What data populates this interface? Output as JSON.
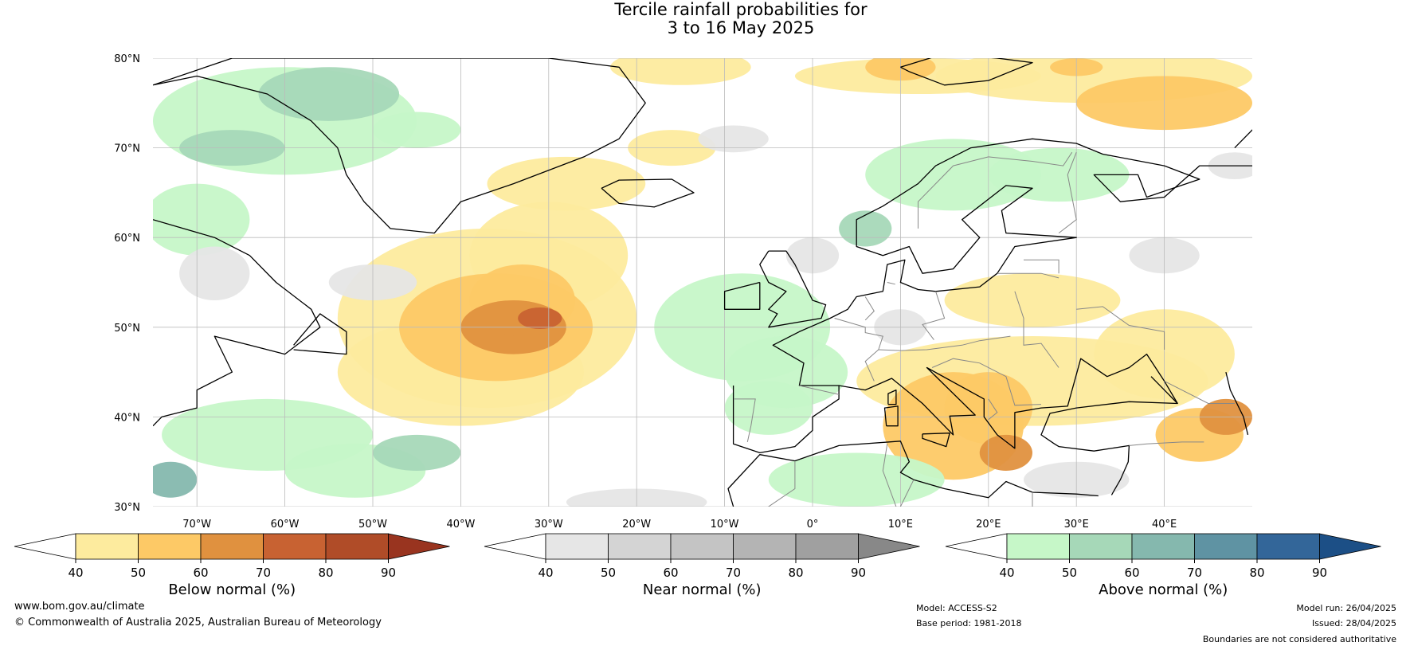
{
  "title": {
    "line1": "Tercile rainfall probabilities for",
    "line2": "3 to 16 May 2025"
  },
  "map": {
    "lat_labels": [
      "80°N",
      "70°N",
      "60°N",
      "50°N",
      "40°N",
      "30°N"
    ],
    "lon_labels": [
      "70°W",
      "60°W",
      "50°W",
      "40°W",
      "30°W",
      "20°W",
      "10°W",
      "0°",
      "10°E",
      "20°E",
      "30°E",
      "40°E"
    ],
    "extent": {
      "lon": [
        -75,
        50
      ],
      "lat": [
        30,
        80
      ]
    }
  },
  "colorbars": [
    {
      "name": "Below normal (%)",
      "ticks": [
        "40",
        "50",
        "60",
        "70",
        "80",
        "90"
      ],
      "colors": [
        "#ffffff",
        "#fdeb9e",
        "#fdc966",
        "#e0913f",
        "#c86232",
        "#b04c28",
        "#99341f"
      ]
    },
    {
      "name": "Near normal (%)",
      "ticks": [
        "40",
        "50",
        "60",
        "70",
        "80",
        "90"
      ],
      "colors": [
        "#ffffff",
        "#e6e6e6",
        "#d4d4d4",
        "#c4c4c4",
        "#b4b4b4",
        "#a0a0a0",
        "#888888"
      ]
    },
    {
      "name": "Above normal (%)",
      "ticks": [
        "40",
        "50",
        "60",
        "70",
        "80",
        "90"
      ],
      "colors": [
        "#ffffff",
        "#c6f7c8",
        "#a6d8b8",
        "#85b8ae",
        "#5f93a3",
        "#336699",
        "#1c4f86"
      ]
    }
  ],
  "footer": {
    "website": "www.bom.gov.au/climate",
    "copyright": "© Commonwealth of Australia 2025, Australian Bureau of Meteorology",
    "model": "Model: ACCESS-S2",
    "base_period": "Base period: 1981-2018",
    "model_run": "Model run: 26/04/2025",
    "issued": "Issued: 28/04/2025",
    "disclaimer": "Boundaries are not considered authoritative"
  },
  "colors": {
    "below_50": "#fdeb9e",
    "below_60": "#fdc966",
    "below_70": "#e0913f",
    "below_80": "#c86232",
    "near_50": "#e6e6e6",
    "above_50": "#c6f7c8",
    "above_60": "#a6d8b8",
    "above_70": "#85b8ae",
    "above_80": "#5f93a3",
    "grid": "#bbbbbb",
    "coast": "#000000",
    "border": "#888888"
  }
}
